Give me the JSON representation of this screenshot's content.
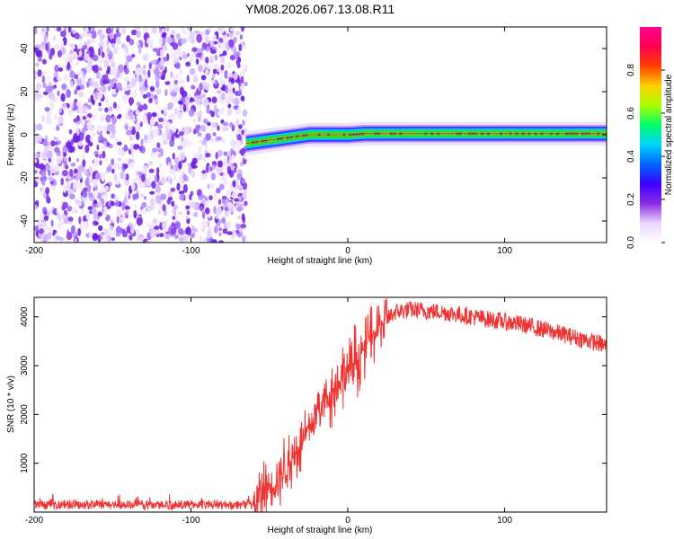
{
  "figure": {
    "title": "YM08.2026.067.13.08.R11"
  },
  "chart_data": [
    {
      "type": "heatmap",
      "title": "YM08.2026.067.13.08.R11",
      "xlabel": "Height of straight line (km)",
      "ylabel": "Frequency (Hz)",
      "xlim": [
        -200,
        165
      ],
      "ylim": [
        -50,
        50
      ],
      "xticks": [
        -200,
        -100,
        0,
        100
      ],
      "yticks": [
        -40,
        -20,
        0,
        20,
        40
      ],
      "noise_region_x": [
        -200,
        -65
      ],
      "signal_track": {
        "x": [
          -65,
          -55,
          -45,
          -35,
          -25,
          -15,
          0,
          10,
          20,
          40,
          60,
          80,
          100,
          120,
          140,
          165
        ],
        "freq": [
          -4,
          -3,
          -2,
          -1,
          0,
          0,
          0,
          0.5,
          0.5,
          0.5,
          0.5,
          0.5,
          0.5,
          0.5,
          0.5,
          0.5
        ]
      },
      "colorbar": {
        "label": "Normalized spectral amplitude",
        "range": [
          0,
          1
        ],
        "ticks": [
          "0.0",
          "0.2",
          "0.4",
          "0.6",
          "0.8"
        ],
        "colormap": [
          "#ffffff",
          "#e8d6ff",
          "#8a2be2",
          "#3b00ff",
          "#0066ff",
          "#00d5ff",
          "#00ff66",
          "#aaff00",
          "#ffd000",
          "#ff4000",
          "#ff0050",
          "#ff0090"
        ]
      }
    },
    {
      "type": "line",
      "xlabel": "Height of straight line (km)",
      "ylabel": "SNR (10 * v/v)",
      "xlim": [
        -200,
        165
      ],
      "ylim": [
        0,
        4400
      ],
      "xticks": [
        -200,
        -100,
        0,
        100
      ],
      "yticks": [
        1000,
        2000,
        3000,
        4000
      ],
      "line_color": "#ee3333",
      "series": [
        {
          "name": "SNR",
          "x": [
            -200,
            -150,
            -100,
            -60,
            -52,
            -45,
            -40,
            -35,
            -30,
            -25,
            -20,
            -15,
            -10,
            -5,
            0,
            5,
            10,
            15,
            20,
            25,
            30,
            40,
            50,
            60,
            70,
            80,
            90,
            100,
            110,
            120,
            130,
            140,
            150,
            160,
            165
          ],
          "y": [
            150,
            150,
            150,
            150,
            500,
            700,
            900,
            1100,
            1400,
            1700,
            2000,
            2300,
            2500,
            2700,
            2900,
            3100,
            3350,
            3600,
            3800,
            3950,
            4100,
            4150,
            4120,
            4100,
            4050,
            4000,
            3950,
            3900,
            3850,
            3780,
            3700,
            3620,
            3540,
            3460,
            3400
          ]
        }
      ]
    }
  ]
}
